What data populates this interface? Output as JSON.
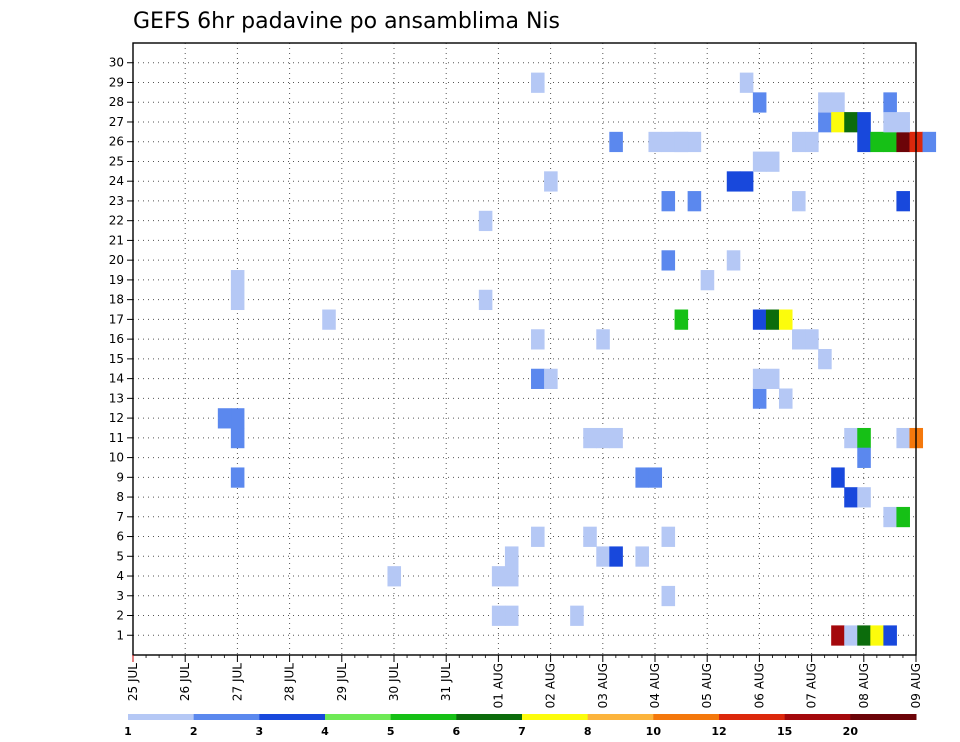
{
  "chart_data": {
    "type": "heatmap",
    "title": "GEFS 6hr padavine po ansamblima Nis",
    "y_ticks": [
      "1",
      "2",
      "3",
      "4",
      "5",
      "6",
      "7",
      "8",
      "9",
      "10",
      "11",
      "12",
      "13",
      "14",
      "15",
      "16",
      "17",
      "18",
      "19",
      "20",
      "21",
      "22",
      "23",
      "24",
      "25",
      "26",
      "27",
      "28",
      "29",
      "30"
    ],
    "ylim": [
      0,
      30
    ],
    "x_ticks": [
      "25 JUL",
      "26 JUL",
      "27 JUL",
      "28 JUL",
      "29 JUL",
      "30 JUL",
      "31 JUL",
      "01 AUG",
      "02 AUG",
      "03 AUG",
      "04 AUG",
      "05 AUG",
      "06 AUG",
      "07 AUG",
      "08 AUG",
      "09 AUG"
    ],
    "x_unit": "6-hour step from 25 JUL 00Z",
    "xlim": [
      0,
      60
    ],
    "grid": true,
    "legend": {
      "position": "bottom",
      "colors": [
        "#b5c8f5",
        "#5b88ee",
        "#1848dc",
        "#6eea56",
        "#16c016",
        "#0c6c0c",
        "#fcfc0c",
        "#fcb43c",
        "#f4780c",
        "#dc280c",
        "#a4080c",
        "#6c0408"
      ],
      "labels": [
        "1",
        "",
        "2",
        "",
        "3",
        "",
        "4",
        "",
        "5",
        "",
        "6",
        "",
        "7",
        "",
        "8",
        "",
        "10",
        "",
        "12",
        "",
        "15",
        "",
        "20",
        ""
      ]
    },
    "cells": [
      [
        8,
        11,
        1
      ],
      [
        8,
        12,
        1
      ],
      [
        7,
        12,
        1
      ],
      [
        8,
        9,
        1
      ],
      [
        8,
        18,
        0
      ],
      [
        8,
        19,
        0
      ],
      [
        39,
        9,
        1
      ],
      [
        40,
        9,
        1
      ],
      [
        20,
        4,
        0
      ],
      [
        15,
        17,
        0
      ],
      [
        29,
        2,
        0
      ],
      [
        28,
        2,
        0
      ],
      [
        28,
        4,
        0
      ],
      [
        29,
        4,
        0
      ],
      [
        29,
        5,
        0
      ],
      [
        27,
        22,
        0
      ],
      [
        27,
        18,
        0
      ],
      [
        31,
        14,
        1
      ],
      [
        31,
        16,
        0
      ],
      [
        31,
        29,
        0
      ],
      [
        32,
        14,
        0
      ],
      [
        32,
        24,
        0
      ],
      [
        31,
        6,
        0
      ],
      [
        34,
        2,
        0
      ],
      [
        35,
        6,
        0
      ],
      [
        36,
        5,
        0
      ],
      [
        37,
        5,
        2
      ],
      [
        35,
        11,
        0
      ],
      [
        36,
        11,
        0
      ],
      [
        37,
        11,
        0
      ],
      [
        39,
        5,
        0
      ],
      [
        36,
        16,
        0
      ],
      [
        37,
        26,
        1
      ],
      [
        41,
        23,
        1
      ],
      [
        41,
        20,
        1
      ],
      [
        40,
        26,
        0
      ],
      [
        41,
        26,
        0
      ],
      [
        42,
        26,
        0
      ],
      [
        43,
        26,
        0
      ],
      [
        42,
        26,
        0
      ],
      [
        41,
        3,
        0
      ],
      [
        41,
        6,
        0
      ],
      [
        42,
        17,
        4
      ],
      [
        43,
        23,
        1
      ],
      [
        44,
        19,
        0
      ],
      [
        46,
        20,
        0
      ],
      [
        47,
        29,
        0
      ],
      [
        46,
        24,
        2
      ],
      [
        47,
        24,
        2
      ],
      [
        48,
        25,
        0
      ],
      [
        49,
        25,
        0
      ],
      [
        48,
        13,
        1
      ],
      [
        48,
        14,
        0
      ],
      [
        49,
        14,
        0
      ],
      [
        50,
        13,
        0
      ],
      [
        48,
        17,
        2
      ],
      [
        49,
        17,
        5
      ],
      [
        50,
        17,
        6
      ],
      [
        48,
        28,
        1
      ],
      [
        51,
        26,
        0
      ],
      [
        51,
        16,
        0
      ],
      [
        51,
        23,
        0
      ],
      [
        52,
        26,
        0
      ],
      [
        53,
        27,
        1
      ],
      [
        53,
        28,
        0
      ],
      [
        54,
        28,
        0
      ],
      [
        54,
        27,
        6
      ],
      [
        55,
        27,
        5
      ],
      [
        56,
        27,
        2
      ],
      [
        56,
        26,
        2
      ],
      [
        57,
        26,
        4
      ],
      [
        58,
        26,
        4
      ],
      [
        59,
        26,
        11
      ],
      [
        60,
        26,
        9
      ],
      [
        61,
        26,
        1
      ],
      [
        58,
        28,
        1
      ],
      [
        58,
        27,
        0
      ],
      [
        59,
        27,
        0
      ],
      [
        52,
        16,
        0
      ],
      [
        53,
        15,
        0
      ],
      [
        55,
        11,
        0
      ],
      [
        56,
        11,
        4
      ],
      [
        56,
        10,
        1
      ],
      [
        54,
        9,
        2
      ],
      [
        55,
        8,
        2
      ],
      [
        56,
        8,
        0
      ],
      [
        58,
        7,
        0
      ],
      [
        59,
        7,
        4
      ],
      [
        59,
        11,
        0
      ],
      [
        60,
        11,
        8
      ],
      [
        59,
        23,
        2
      ],
      [
        54,
        1,
        10
      ],
      [
        55,
        1,
        0
      ],
      [
        56,
        1,
        5
      ],
      [
        57,
        1,
        6
      ],
      [
        58,
        1,
        2
      ]
    ]
  }
}
